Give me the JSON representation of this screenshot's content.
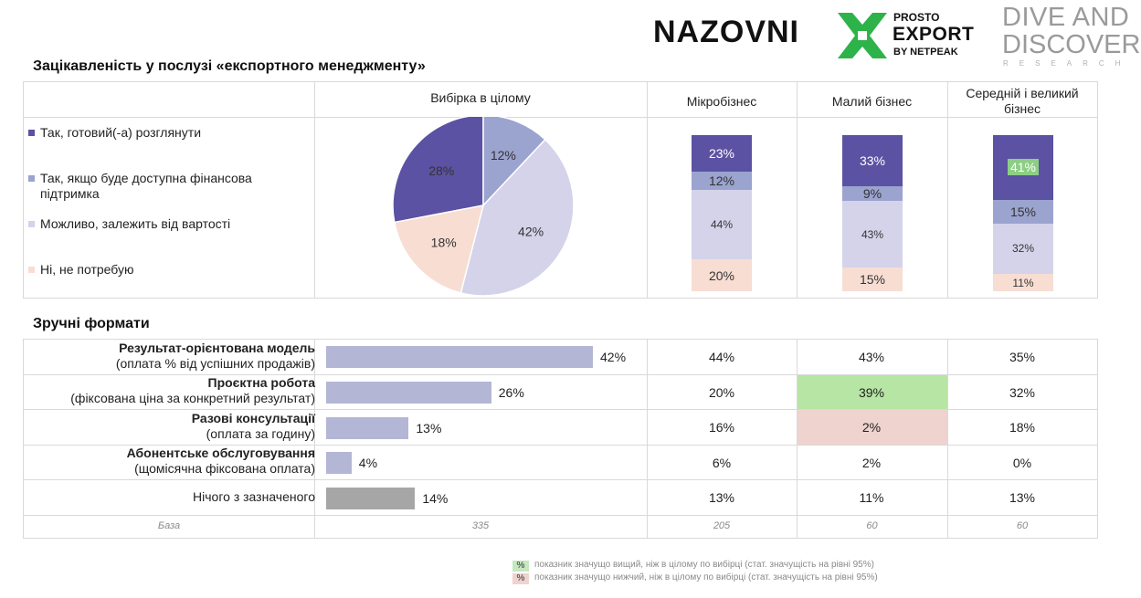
{
  "logos": {
    "nazovni": "NAZOVNI",
    "prosto_line1": "PROSTO",
    "prosto_line2": "EXPORT",
    "prosto_line3": "BY NETPEAK",
    "dive_line1": "DIVE AND",
    "dive_line2": "DISCOVERY",
    "dive_line3": "RESEARCH",
    "prosto_color": "#2db34a"
  },
  "section1_title": "Зацікавленість у послузі «експортного менеджменту»",
  "section2_title": "Зручні формати",
  "headers": {
    "total": "Вибірка в цілому",
    "micro": "Мікробізнес",
    "small": "Малий бізнес",
    "medium_large": "Середній і великий бізнес"
  },
  "legend": [
    {
      "label": "Так, готовий(-а) розглянути",
      "color": "#5b52a3"
    },
    {
      "label": "Так, якщо буде доступна фінансова підтримка",
      "color": "#9ba3cf"
    },
    {
      "label": "Можливо, залежить від вартості",
      "color": "#d4d3ea"
    },
    {
      "label": "Ні, не потребую",
      "color": "#f8ddd3"
    }
  ],
  "formats": [
    {
      "title": "Результат-орієнтована модель",
      "subtitle": "(оплата % від успішних продажів)"
    },
    {
      "title": "Проєктна робота",
      "subtitle": "(фіксована ціна за конкретний результат)"
    },
    {
      "title": "Разові консультації",
      "subtitle": "(оплата за годину)"
    },
    {
      "title": "Абонентське обслуговування",
      "subtitle": "(щомісячна фіксована оплата)"
    },
    {
      "title": "",
      "subtitle": "Нічого з зазначеного"
    }
  ],
  "base_row": {
    "label": "База",
    "values": [
      "335",
      "205",
      "60",
      "60"
    ]
  },
  "notes": {
    "mark": "%",
    "higher": "показник значущо вищий, ніж в цілому по вибірці (стат. значущість на рівні 95%)",
    "lower": "показник значущо нижчий, ніж в цілому по вибірці (стат. значущість на рівні 95%)",
    "higher_color": "#c6e7c0",
    "lower_color": "#eed3cf"
  },
  "chart_data": [
    {
      "type": "pie",
      "title": "Вибірка в цілому",
      "categories": [
        "Так, готовий(-а) розглянути",
        "Так, якщо буде доступна фінансова підтримка",
        "Можливо, залежить від вартості",
        "Ні, не потребую"
      ],
      "values": [
        28,
        12,
        42,
        18
      ],
      "labels": [
        "28%",
        "12%",
        "42%",
        "18%"
      ],
      "colors": [
        "#5b52a3",
        "#9ba3cf",
        "#d4d3ea",
        "#f8ddd3"
      ]
    },
    {
      "type": "bar",
      "stacked": true,
      "categories": [
        "Мікробізнес",
        "Малий бізнес",
        "Середній і великий бізнес"
      ],
      "series": [
        {
          "name": "Так, готовий(-а) розглянути",
          "values": [
            23,
            33,
            41
          ],
          "labels": [
            "23%",
            "33%",
            "41%"
          ],
          "color": "#5b52a3",
          "significance": [
            null,
            null,
            "higher"
          ]
        },
        {
          "name": "Так, якщо буде доступна фінансова підтримка",
          "values": [
            12,
            9,
            15
          ],
          "labels": [
            "12%",
            "9%",
            "15%"
          ],
          "color": "#9ba3cf"
        },
        {
          "name": "Можливо, залежить від вартості",
          "values": [
            44,
            43,
            32
          ],
          "labels": [
            "44%",
            "43%",
            "32%"
          ],
          "color": "#d4d3ea"
        },
        {
          "name": "Ні, не потребую",
          "values": [
            20,
            15,
            11
          ],
          "labels": [
            "20%",
            "15%",
            "11%"
          ],
          "color": "#f8ddd3"
        }
      ]
    },
    {
      "type": "bar",
      "orientation": "horizontal",
      "categories": [
        "Результат-орієнтована модель",
        "Проєктна робота",
        "Разові консультації",
        "Абонентське обслуговування",
        "Нічого з зазначеного"
      ],
      "values": [
        42,
        26,
        13,
        4,
        14
      ],
      "labels": [
        "42%",
        "26%",
        "13%",
        "4%",
        "14%"
      ],
      "colors": [
        "#b4b6d6",
        "#b4b6d6",
        "#b4b6d6",
        "#b4b6d6",
        "#a6a6a6"
      ]
    },
    {
      "type": "table",
      "columns": [
        "Мікробізнес",
        "Малий бізнес",
        "Середній і великий бізнес"
      ],
      "rows": [
        {
          "values": [
            "44%",
            "43%",
            "35%"
          ],
          "significance": [
            null,
            null,
            null
          ]
        },
        {
          "values": [
            "20%",
            "39%",
            "32%"
          ],
          "significance": [
            null,
            "higher",
            null
          ]
        },
        {
          "values": [
            "16%",
            "2%",
            "18%"
          ],
          "significance": [
            null,
            "lower",
            null
          ]
        },
        {
          "values": [
            "6%",
            "2%",
            "0%"
          ],
          "significance": [
            null,
            null,
            null
          ]
        },
        {
          "values": [
            "13%",
            "11%",
            "13%"
          ],
          "significance": [
            null,
            null,
            null
          ]
        }
      ]
    }
  ]
}
